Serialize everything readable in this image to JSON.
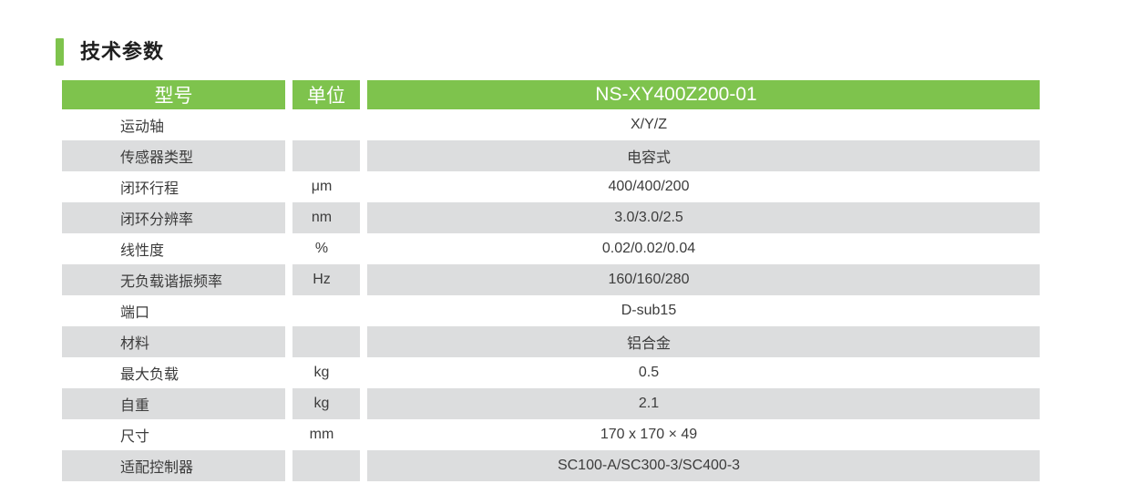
{
  "section": {
    "title": "技术参数"
  },
  "table": {
    "header": {
      "model_col": "型号",
      "unit_col": "单位",
      "product_model": "NS-XY400Z200-01"
    },
    "rows": [
      {
        "label": "运动轴",
        "unit": "",
        "value": "X/Y/Z"
      },
      {
        "label": "传感器类型",
        "unit": "",
        "value": "电容式"
      },
      {
        "label": "闭环行程",
        "unit": "μm",
        "value": "400/400/200"
      },
      {
        "label": "闭环分辨率",
        "unit": "nm",
        "value": "3.0/3.0/2.5"
      },
      {
        "label": "线性度",
        "unit": "%",
        "value": "0.02/0.02/0.04"
      },
      {
        "label": "无负载谐振频率",
        "unit": "Hz",
        "value": "160/160/280"
      },
      {
        "label": "端口",
        "unit": "",
        "value": "D-sub15"
      },
      {
        "label": "材料",
        "unit": "",
        "value": "铝合金"
      },
      {
        "label": "最大负载",
        "unit": "kg",
        "value": "0.5"
      },
      {
        "label": "自重",
        "unit": "kg",
        "value": "2.1"
      },
      {
        "label": "尺寸",
        "unit": "mm",
        "value": "170 x 170 × 49"
      },
      {
        "label": "适配控制器",
        "unit": "",
        "value": "SC100-A/SC300-3/SC400-3"
      }
    ],
    "colors": {
      "header_bg": "#7EC34D",
      "accent_bar": "#7EC34D",
      "row_alt_bg": "#DCDDDE",
      "header_text": "#FFFFFF",
      "body_text": "#3C3C3C"
    }
  }
}
